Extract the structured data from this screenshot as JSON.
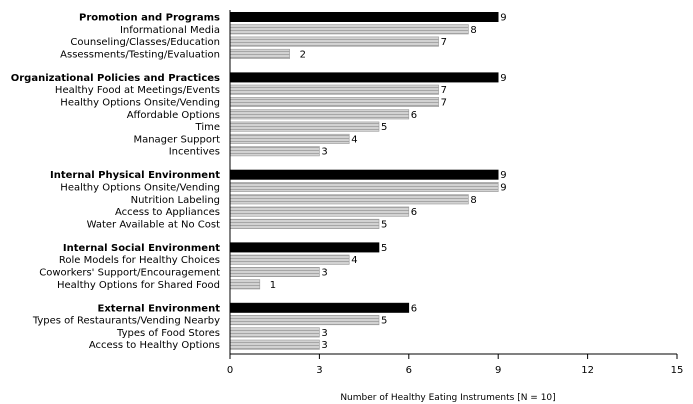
{
  "chart_data": {
    "type": "bar",
    "orientation": "horizontal",
    "xlabel": "Number of Healthy Eating Instruments [N = 10]",
    "xlim": [
      0,
      15
    ],
    "xticks": [
      0,
      3,
      6,
      9,
      12,
      15
    ],
    "grid": false,
    "colors": {
      "header": "#000000",
      "item": "#c8c8c8"
    },
    "groups": [
      {
        "name": "Promotion and Programs",
        "value": 9,
        "items": [
          {
            "label": "Informational Media",
            "value": 8
          },
          {
            "label": "Counseling/Classes/Education",
            "value": 7
          },
          {
            "label": "Assessments/Testing/Evaluation",
            "value": 2
          }
        ]
      },
      {
        "name": "Organizational Policies and Practices",
        "value": 9,
        "items": [
          {
            "label": "Healthy Food at Meetings/Events",
            "value": 7
          },
          {
            "label": "Healthy Options Onsite/Vending",
            "value": 7
          },
          {
            "label": "Affordable Options",
            "value": 6
          },
          {
            "label": "Time",
            "value": 5
          },
          {
            "label": "Manager Support",
            "value": 4
          },
          {
            "label": "Incentives",
            "value": 3
          }
        ]
      },
      {
        "name": "Internal Physical Environment",
        "value": 9,
        "items": [
          {
            "label": "Healthy Options Onsite/Vending",
            "value": 9
          },
          {
            "label": "Nutrition Labeling",
            "value": 8
          },
          {
            "label": "Access to Appliances",
            "value": 6
          },
          {
            "label": "Water Available at No Cost",
            "value": 5
          }
        ]
      },
      {
        "name": "Internal Social Environment",
        "value": 5,
        "items": [
          {
            "label": "Role Models for Healthy Choices",
            "value": 4
          },
          {
            "label": "Coworkers' Support/Encouragement",
            "value": 3
          },
          {
            "label": "Healthy Options for Shared Food",
            "value": 1
          }
        ]
      },
      {
        "name": "External Environment",
        "value": 6,
        "items": [
          {
            "label": "Types of Restaurants/Vending Nearby",
            "value": 5
          },
          {
            "label": "Types of Food Stores",
            "value": 3
          },
          {
            "label": "Access to Healthy Options",
            "value": 3
          }
        ]
      }
    ]
  }
}
